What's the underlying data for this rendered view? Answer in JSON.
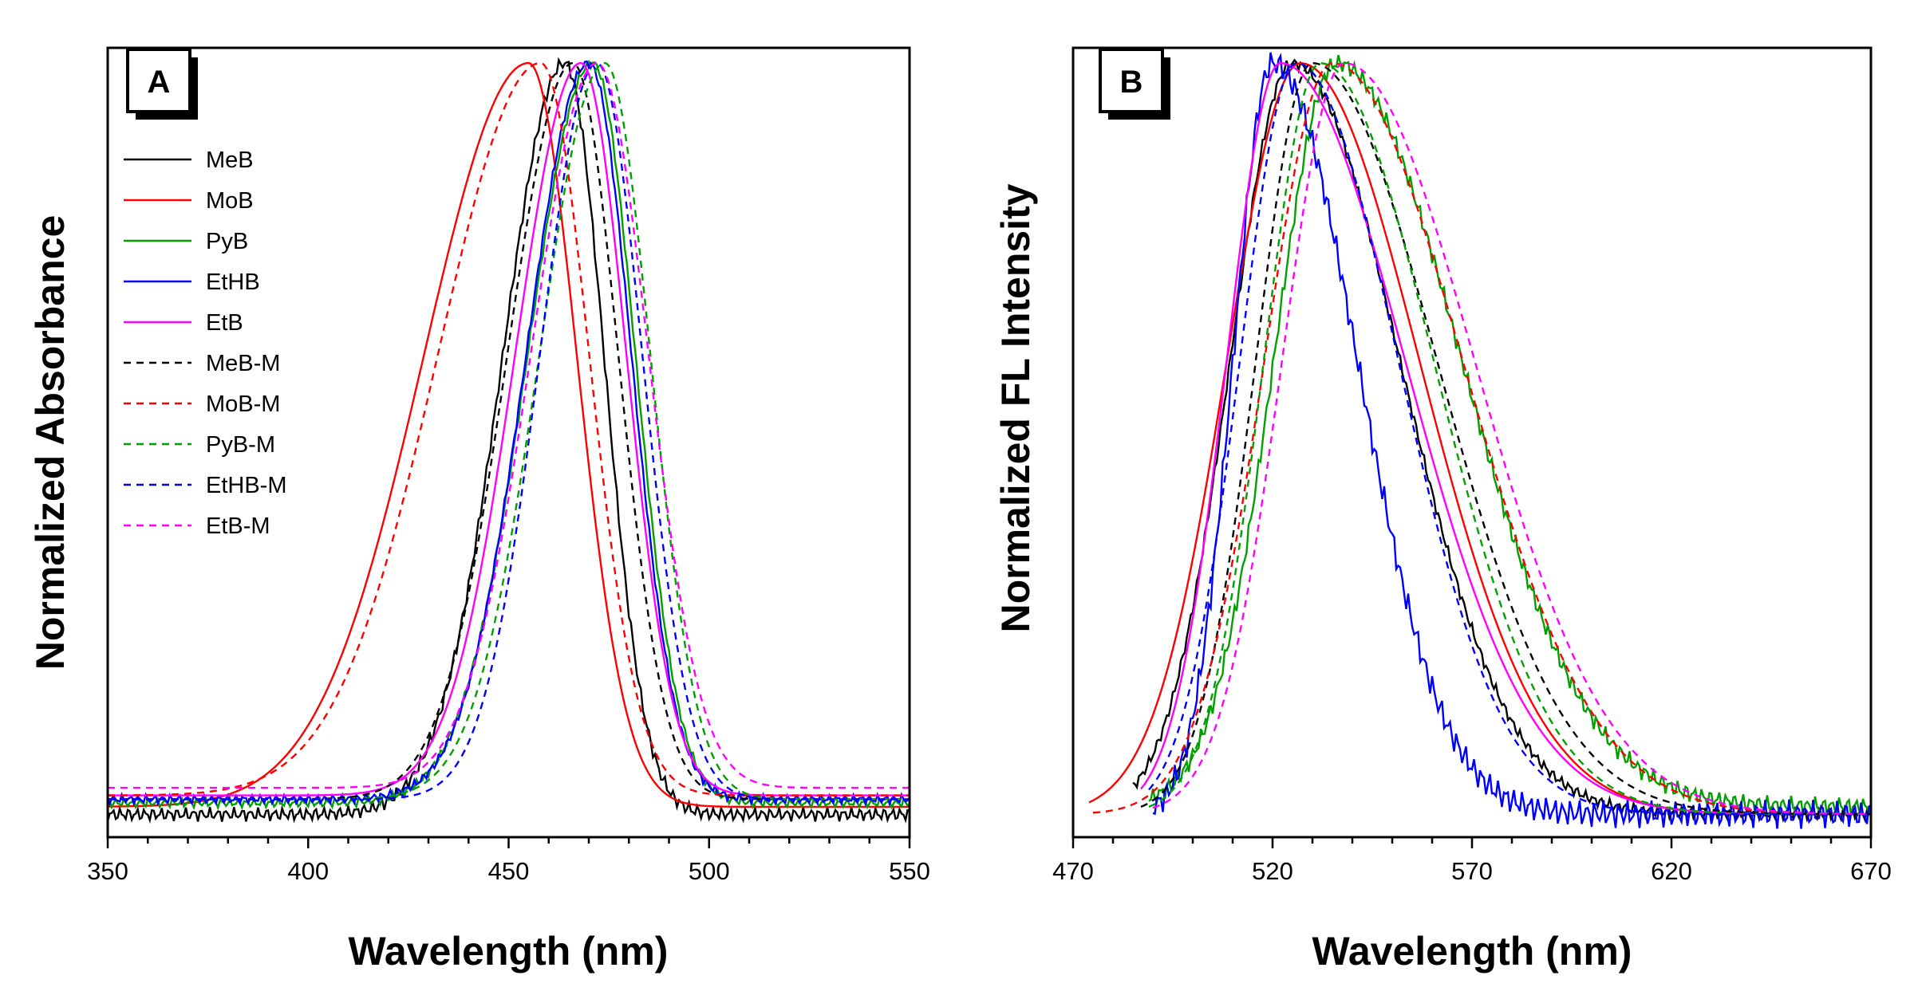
{
  "chart_data": [
    {
      "type": "line",
      "panel_label": "A",
      "title": "",
      "xlabel": "Wavelength (nm)",
      "ylabel": "Normalized Absorbance",
      "xlim": [
        350,
        550
      ],
      "ylim": [
        -0.02,
        1.02
      ],
      "xticks": [
        350,
        400,
        450,
        500,
        550
      ],
      "xtick_labels": [
        "350",
        "400",
        "450",
        "500",
        "550"
      ],
      "y_tick_labels_shown": false,
      "grid": false,
      "legend_position": "upper-left",
      "series": [
        {
          "name": "MeB",
          "style": "solid",
          "color": "#000000",
          "peak": 464,
          "wl": 22,
          "wr": 14,
          "base": 0.01,
          "noise": 0.006
        },
        {
          "name": "MoB",
          "style": "solid",
          "color": "#ff0000",
          "peak": 455,
          "wl": 37,
          "wr": 17,
          "base": 0.02,
          "noise": 0.0
        },
        {
          "name": "PyB",
          "style": "solid",
          "color": "#00a000",
          "peak": 471,
          "wl": 23,
          "wr": 15,
          "base": 0.025,
          "noise": 0.004
        },
        {
          "name": "EtHB",
          "style": "solid",
          "color": "#0000ff",
          "peak": 470,
          "wl": 22,
          "wr": 15,
          "base": 0.03,
          "noise": 0.004
        },
        {
          "name": "EtB",
          "style": "solid",
          "color": "#ff00ff",
          "peak": 468,
          "wl": 23,
          "wr": 16,
          "base": 0.035,
          "noise": 0.0
        },
        {
          "name": "MeB-M",
          "style": "dashed",
          "color": "#000000",
          "peak": 466,
          "wl": 23,
          "wr": 16,
          "base": 0.03,
          "noise": 0.0
        },
        {
          "name": "MoB-M",
          "style": "dashed",
          "color": "#ff0000",
          "peak": 458,
          "wl": 36,
          "wr": 17,
          "base": 0.035,
          "noise": 0.0
        },
        {
          "name": "PyB-M",
          "style": "dashed",
          "color": "#00a000",
          "peak": 474,
          "wl": 23,
          "wr": 16,
          "base": 0.03,
          "noise": 0.0
        },
        {
          "name": "EtHB-M",
          "style": "dashed",
          "color": "#0000ff",
          "peak": 472,
          "wl": 20,
          "wr": 16,
          "base": 0.03,
          "noise": 0.0
        },
        {
          "name": "EtB-M",
          "style": "dashed",
          "color": "#ff00ff",
          "peak": 472,
          "wl": 23,
          "wr": 18,
          "base": 0.045,
          "noise": 0.0
        }
      ]
    },
    {
      "type": "line",
      "panel_label": "B",
      "title": "",
      "xlabel": "Wavelength (nm)",
      "ylabel": "Normalized FL Intensity",
      "xlim": [
        470,
        670
      ],
      "ylim": [
        -0.01,
        1.02
      ],
      "xticks": [
        470,
        520,
        570,
        620,
        670
      ],
      "xtick_labels": [
        "470",
        "520",
        "570",
        "620",
        "670"
      ],
      "y_tick_labels_shown": false,
      "grid": false,
      "series": [
        {
          "name": "MeB",
          "style": "solid",
          "color": "#000000",
          "peak": 525,
          "wl": 22,
          "wr": 38,
          "base": 0.02,
          "start": 485,
          "noise": 0.005
        },
        {
          "name": "MoB",
          "style": "solid",
          "color": "#ff0000",
          "peak": 527,
          "wl": 26,
          "wr": 42,
          "base": 0.02,
          "start": 474,
          "noise": 0.0
        },
        {
          "name": "PyB",
          "style": "solid",
          "color": "#00a000",
          "peak": 536,
          "wl": 22,
          "wr": 44,
          "base": 0.03,
          "start": 489,
          "noise": 0.008
        },
        {
          "name": "EtHB",
          "style": "solid",
          "color": "#0000ff",
          "peak": 520,
          "wl": 14,
          "wr": 30,
          "base": 0.02,
          "start": 490,
          "noise": 0.012
        },
        {
          "name": "EtB",
          "style": "solid",
          "color": "#ff00ff",
          "peak": 522,
          "wl": 19,
          "wr": 44,
          "base": 0.02,
          "start": 487,
          "noise": 0.0
        },
        {
          "name": "MeB-M",
          "style": "dashed",
          "color": "#000000",
          "peak": 530,
          "wl": 20,
          "wr": 44,
          "base": 0.02,
          "start": 487,
          "noise": 0.0
        },
        {
          "name": "MoB-M",
          "style": "dashed",
          "color": "#ff0000",
          "peak": 535,
          "wl": 24,
          "wr": 46,
          "base": 0.02,
          "start": 475,
          "noise": 0.0
        },
        {
          "name": "PyB-M",
          "style": "dashed",
          "color": "#00a000",
          "peak": 532,
          "wl": 20,
          "wr": 40,
          "base": 0.02,
          "start": 489,
          "noise": 0.0
        },
        {
          "name": "EtHB-M",
          "style": "dashed",
          "color": "#0000ff",
          "peak": 526,
          "wl": 20,
          "wr": 36,
          "base": 0.02,
          "start": 489,
          "noise": 0.0
        },
        {
          "name": "EtB-M",
          "style": "dashed",
          "color": "#ff00ff",
          "peak": 538,
          "wl": 22,
          "wr": 46,
          "base": 0.02,
          "start": 490,
          "noise": 0.0
        }
      ]
    }
  ]
}
